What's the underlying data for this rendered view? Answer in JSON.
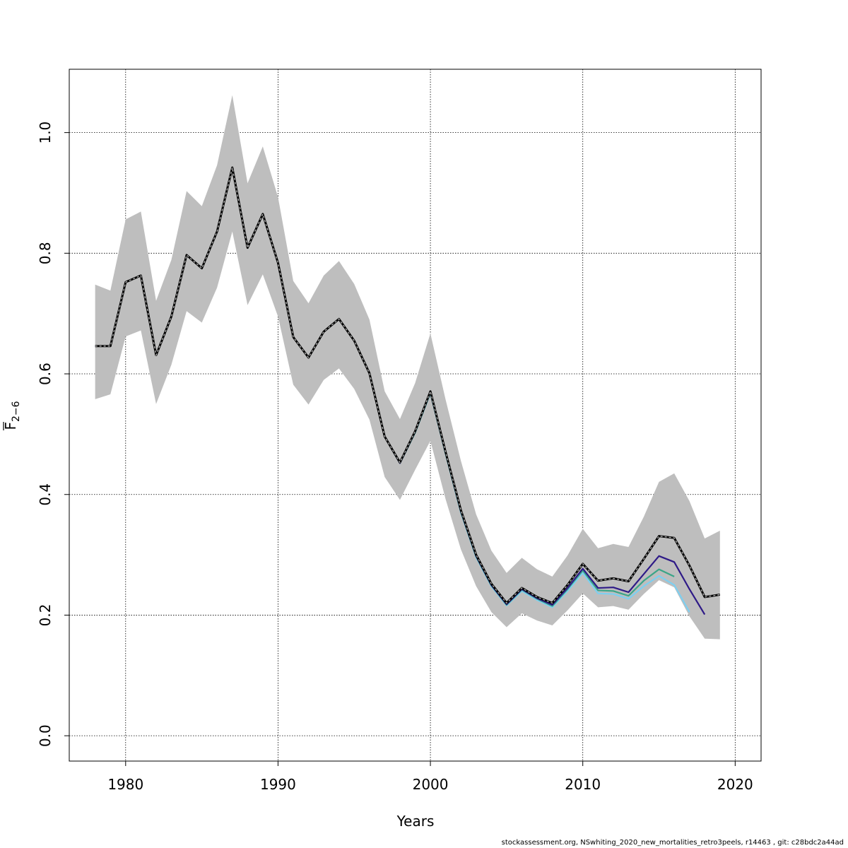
{
  "chart_data": {
    "type": "line",
    "xlabel": "Years",
    "ylabel_main": "F",
    "ylabel_sub": "2−6",
    "xlim": [
      1976.3,
      2021.7
    ],
    "ylim": [
      -0.042,
      1.105
    ],
    "x_ticks": [
      1980,
      1990,
      2000,
      2010,
      2020
    ],
    "y_ticks": [
      0.0,
      0.2,
      0.4,
      0.6,
      0.8,
      1.0
    ],
    "x_tick_labels": [
      "1980",
      "1990",
      "2000",
      "2010",
      "2020"
    ],
    "y_tick_labels": [
      "0.0",
      "0.2",
      "0.4",
      "0.6",
      "0.8",
      "1.0"
    ],
    "grid": true,
    "colors": {
      "band": "#bebebe",
      "base": "#000000",
      "retro1": "#2e1a87",
      "retro2": "#3aa587",
      "retro3": "#7ecff0"
    },
    "confidence_band": {
      "x": [
        1978,
        1979,
        1980,
        1981,
        1982,
        1983,
        1984,
        1985,
        1986,
        1987,
        1988,
        1989,
        1990,
        1991,
        1992,
        1993,
        1994,
        1995,
        1996,
        1997,
        1998,
        1999,
        2000,
        2001,
        2002,
        2003,
        2004,
        2005,
        2006,
        2007,
        2008,
        2009,
        2010,
        2011,
        2012,
        2013,
        2014,
        2015,
        2016,
        2017,
        2018,
        2019
      ],
      "lower": [
        0.558,
        0.566,
        0.662,
        0.672,
        0.55,
        0.615,
        0.704,
        0.685,
        0.743,
        0.836,
        0.714,
        0.765,
        0.695,
        0.582,
        0.549,
        0.59,
        0.609,
        0.575,
        0.524,
        0.429,
        0.391,
        0.441,
        0.489,
        0.392,
        0.309,
        0.248,
        0.205,
        0.18,
        0.203,
        0.191,
        0.183,
        0.208,
        0.236,
        0.213,
        0.215,
        0.209,
        0.235,
        0.258,
        0.246,
        0.198,
        0.161,
        0.16
      ],
      "upper": [
        0.748,
        0.738,
        0.856,
        0.869,
        0.721,
        0.789,
        0.903,
        0.878,
        0.946,
        1.062,
        0.916,
        0.977,
        0.893,
        0.754,
        0.717,
        0.763,
        0.787,
        0.749,
        0.69,
        0.571,
        0.525,
        0.585,
        0.667,
        0.557,
        0.456,
        0.367,
        0.307,
        0.27,
        0.295,
        0.276,
        0.264,
        0.299,
        0.343,
        0.311,
        0.318,
        0.313,
        0.363,
        0.421,
        0.435,
        0.389,
        0.327,
        0.34
      ]
    },
    "series": [
      {
        "key": "base",
        "dashed": true,
        "x": [
          1978,
          1979,
          1980,
          1981,
          1982,
          1983,
          1984,
          1985,
          1986,
          1987,
          1988,
          1989,
          1990,
          1991,
          1992,
          1993,
          1994,
          1995,
          1996,
          1997,
          1998,
          1999,
          2000,
          2001,
          2002,
          2003,
          2004,
          2005,
          2006,
          2007,
          2008,
          2009,
          2010,
          2011,
          2012,
          2013,
          2014,
          2015,
          2016,
          2017,
          2018,
          2019
        ],
        "values": [
          0.646,
          0.646,
          0.752,
          0.763,
          0.631,
          0.695,
          0.797,
          0.775,
          0.836,
          0.942,
          0.809,
          0.865,
          0.784,
          0.661,
          0.627,
          0.67,
          0.691,
          0.655,
          0.601,
          0.496,
          0.453,
          0.505,
          0.571,
          0.47,
          0.374,
          0.3,
          0.252,
          0.22,
          0.245,
          0.23,
          0.22,
          0.25,
          0.285,
          0.257,
          0.261,
          0.256,
          0.293,
          0.331,
          0.328,
          0.282,
          0.23,
          0.234
        ]
      },
      {
        "key": "retro1",
        "dashed": false,
        "x": [
          1978,
          1979,
          1980,
          1981,
          1982,
          1983,
          1984,
          1985,
          1986,
          1987,
          1988,
          1989,
          1990,
          1991,
          1992,
          1993,
          1994,
          1995,
          1996,
          1997,
          1998,
          1999,
          2000,
          2001,
          2002,
          2003,
          2004,
          2005,
          2006,
          2007,
          2008,
          2009,
          2010,
          2011,
          2012,
          2013,
          2014,
          2015,
          2016,
          2017,
          2018
        ],
        "values": [
          0.646,
          0.646,
          0.752,
          0.763,
          0.631,
          0.695,
          0.797,
          0.775,
          0.836,
          0.942,
          0.809,
          0.865,
          0.784,
          0.661,
          0.627,
          0.67,
          0.691,
          0.655,
          0.601,
          0.496,
          0.452,
          0.504,
          0.57,
          0.469,
          0.372,
          0.298,
          0.25,
          0.218,
          0.243,
          0.228,
          0.217,
          0.245,
          0.277,
          0.245,
          0.246,
          0.238,
          0.268,
          0.298,
          0.288,
          0.243,
          0.201
        ]
      },
      {
        "key": "retro2",
        "dashed": false,
        "x": [
          1978,
          1979,
          1980,
          1981,
          1982,
          1983,
          1984,
          1985,
          1986,
          1987,
          1988,
          1989,
          1990,
          1991,
          1992,
          1993,
          1994,
          1995,
          1996,
          1997,
          1998,
          1999,
          2000,
          2001,
          2002,
          2003,
          2004,
          2005,
          2006,
          2007,
          2008,
          2009,
          2010,
          2011,
          2012,
          2013,
          2014,
          2015,
          2016
        ],
        "values": [
          0.646,
          0.646,
          0.752,
          0.763,
          0.631,
          0.695,
          0.797,
          0.775,
          0.836,
          0.942,
          0.809,
          0.865,
          0.784,
          0.661,
          0.627,
          0.67,
          0.691,
          0.655,
          0.601,
          0.496,
          0.452,
          0.503,
          0.569,
          0.468,
          0.371,
          0.297,
          0.249,
          0.217,
          0.242,
          0.227,
          0.215,
          0.243,
          0.274,
          0.241,
          0.24,
          0.232,
          0.257,
          0.276,
          0.264
        ]
      },
      {
        "key": "retro3",
        "dashed": false,
        "x": [
          1978,
          1979,
          1980,
          1981,
          1982,
          1983,
          1984,
          1985,
          1986,
          1987,
          1988,
          1989,
          1990,
          1991,
          1992,
          1993,
          1994,
          1995,
          1996,
          1997,
          1998,
          1999,
          2000,
          2001,
          2002,
          2003,
          2004,
          2005,
          2006,
          2007,
          2008,
          2009,
          2010,
          2011,
          2012,
          2013,
          2014,
          2015,
          2016,
          2017
        ],
        "values": [
          0.646,
          0.646,
          0.752,
          0.763,
          0.631,
          0.695,
          0.797,
          0.775,
          0.836,
          0.942,
          0.809,
          0.865,
          0.784,
          0.661,
          0.627,
          0.67,
          0.691,
          0.655,
          0.601,
          0.496,
          0.452,
          0.503,
          0.568,
          0.467,
          0.37,
          0.296,
          0.248,
          0.216,
          0.24,
          0.225,
          0.213,
          0.24,
          0.27,
          0.236,
          0.235,
          0.227,
          0.248,
          0.265,
          0.25,
          0.205
        ]
      }
    ]
  },
  "footer": "stockassessment.org, NSwhiting_2020_new_mortalities_retro3peels, r14463 , git: c28bdc2a44ad"
}
